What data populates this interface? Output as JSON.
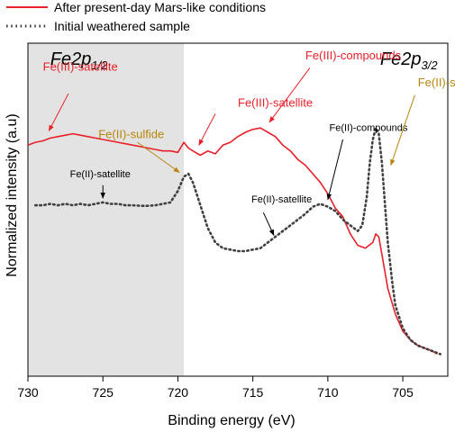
{
  "chart_data": {
    "type": "line",
    "xlabel": "Binding energy (eV)",
    "ylabel": "Normalized intensity (a.u)",
    "xlim": [
      730,
      702
    ],
    "x_reversed": true,
    "ylim": [
      0,
      1
    ],
    "y_ticks_shown": false,
    "xticks": [
      730,
      725,
      720,
      715,
      710,
      705
    ],
    "grid": false,
    "legend_position": "top-left, outside plot",
    "shaded_region": {
      "x_from": 730,
      "x_to": 719.6,
      "color": "#e3e3e3"
    },
    "region_labels": [
      {
        "main": "Fe2p",
        "sub": "1/2",
        "x": 726.6
      },
      {
        "main": "Fe2p",
        "sub": "3/2",
        "x": 704.6
      }
    ],
    "series": [
      {
        "name": "After present-day Mars-like conditions",
        "color": "#e8202a",
        "style": "solid",
        "points": [
          [
            730.0,
            0.76
          ],
          [
            729.5,
            0.77
          ],
          [
            729.0,
            0.775
          ],
          [
            728.5,
            0.785
          ],
          [
            728.0,
            0.79
          ],
          [
            727.5,
            0.795
          ],
          [
            727.0,
            0.8
          ],
          [
            726.5,
            0.795
          ],
          [
            726.0,
            0.79
          ],
          [
            725.5,
            0.785
          ],
          [
            725.0,
            0.78
          ],
          [
            724.5,
            0.775
          ],
          [
            724.0,
            0.77
          ],
          [
            723.5,
            0.765
          ],
          [
            723.0,
            0.76
          ],
          [
            722.5,
            0.755
          ],
          [
            722.0,
            0.75
          ],
          [
            721.5,
            0.745
          ],
          [
            721.0,
            0.74
          ],
          [
            720.5,
            0.74
          ],
          [
            720.0,
            0.735
          ],
          [
            719.6,
            0.77
          ],
          [
            719.3,
            0.75
          ],
          [
            719.0,
            0.74
          ],
          [
            718.5,
            0.725
          ],
          [
            718.0,
            0.74
          ],
          [
            717.5,
            0.73
          ],
          [
            717.0,
            0.76
          ],
          [
            716.5,
            0.77
          ],
          [
            716.0,
            0.79
          ],
          [
            715.5,
            0.805
          ],
          [
            715.0,
            0.815
          ],
          [
            714.5,
            0.82
          ],
          [
            714.0,
            0.805
          ],
          [
            713.5,
            0.79
          ],
          [
            713.0,
            0.76
          ],
          [
            712.5,
            0.74
          ],
          [
            712.0,
            0.71
          ],
          [
            711.5,
            0.69
          ],
          [
            711.0,
            0.66
          ],
          [
            710.5,
            0.63
          ],
          [
            710.0,
            0.59
          ],
          [
            709.5,
            0.54
          ],
          [
            709.0,
            0.51
          ],
          [
            708.5,
            0.45
          ],
          [
            708.0,
            0.41
          ],
          [
            707.5,
            0.4
          ],
          [
            707.0,
            0.42
          ],
          [
            706.8,
            0.45
          ],
          [
            706.6,
            0.44
          ],
          [
            706.4,
            0.38
          ],
          [
            706.2,
            0.32
          ],
          [
            706.0,
            0.26
          ],
          [
            705.5,
            0.17
          ],
          [
            705.0,
            0.11
          ],
          [
            704.5,
            0.08
          ],
          [
            704.0,
            0.06
          ],
          [
            703.5,
            0.05
          ],
          [
            703.0,
            0.04
          ],
          [
            702.7,
            0.03
          ]
        ]
      },
      {
        "name": "Initial weathered sample",
        "color": "#404040",
        "style": "dotted",
        "points": [
          [
            729.5,
            0.55
          ],
          [
            729.0,
            0.55
          ],
          [
            728.5,
            0.555
          ],
          [
            728.0,
            0.55
          ],
          [
            727.5,
            0.555
          ],
          [
            727.0,
            0.55
          ],
          [
            726.5,
            0.555
          ],
          [
            726.0,
            0.55
          ],
          [
            725.5,
            0.555
          ],
          [
            725.0,
            0.56
          ],
          [
            724.5,
            0.555
          ],
          [
            724.0,
            0.555
          ],
          [
            723.5,
            0.55
          ],
          [
            723.0,
            0.55
          ],
          [
            722.5,
            0.548
          ],
          [
            722.0,
            0.548
          ],
          [
            721.5,
            0.55
          ],
          [
            721.0,
            0.555
          ],
          [
            720.5,
            0.56
          ],
          [
            720.0,
            0.6
          ],
          [
            719.6,
            0.65
          ],
          [
            719.3,
            0.66
          ],
          [
            719.0,
            0.63
          ],
          [
            718.5,
            0.55
          ],
          [
            718.0,
            0.47
          ],
          [
            717.5,
            0.42
          ],
          [
            717.0,
            0.4
          ],
          [
            716.5,
            0.395
          ],
          [
            716.0,
            0.39
          ],
          [
            715.5,
            0.39
          ],
          [
            715.0,
            0.395
          ],
          [
            714.5,
            0.4
          ],
          [
            714.0,
            0.42
          ],
          [
            713.5,
            0.44
          ],
          [
            713.0,
            0.46
          ],
          [
            712.5,
            0.48
          ],
          [
            712.0,
            0.5
          ],
          [
            711.5,
            0.52
          ],
          [
            711.0,
            0.545
          ],
          [
            710.5,
            0.555
          ],
          [
            710.0,
            0.545
          ],
          [
            709.5,
            0.53
          ],
          [
            709.0,
            0.5
          ],
          [
            708.5,
            0.48
          ],
          [
            708.0,
            0.46
          ],
          [
            707.7,
            0.48
          ],
          [
            707.4,
            0.58
          ],
          [
            707.2,
            0.7
          ],
          [
            707.0,
            0.78
          ],
          [
            706.8,
            0.82
          ],
          [
            706.6,
            0.8
          ],
          [
            706.4,
            0.7
          ],
          [
            706.2,
            0.56
          ],
          [
            706.0,
            0.42
          ],
          [
            705.7,
            0.28
          ],
          [
            705.5,
            0.2
          ],
          [
            705.0,
            0.12
          ],
          [
            704.5,
            0.08
          ],
          [
            704.0,
            0.06
          ],
          [
            703.5,
            0.05
          ],
          [
            703.0,
            0.04
          ],
          [
            702.5,
            0.03
          ]
        ]
      }
    ],
    "annotations": [
      {
        "text": "Fe(III)-satellite",
        "color": "#e8202a",
        "size": 13,
        "tx": 729.0,
        "ty": 1.02,
        "ax": 727.3,
        "ay": 0.94,
        "hx": 728.6,
        "hy": 0.81
      },
      {
        "text": "Fe(II)-sulfide",
        "color": "#b8860b",
        "size": 13,
        "tx": 725.3,
        "ty": 0.785,
        "ax": 722.7,
        "ay": 0.77,
        "hx": 719.9,
        "hy": 0.665
      },
      {
        "text": "Fe(II)-satellite",
        "color": "#000000",
        "size": 11,
        "tx": 727.2,
        "ty": 0.648,
        "ax": 725.0,
        "ay": 0.62,
        "hx": 725.0,
        "hy": 0.575
      },
      {
        "text": "Fe(III)-satellite",
        "color": "#e8202a",
        "size": 13,
        "tx": 716.0,
        "ty": 0.895,
        "ax": 717.5,
        "ay": 0.87,
        "hx": 718.6,
        "hy": 0.76
      },
      {
        "text": "Fe(III)-compounds",
        "color": "#e8202a",
        "size": 13,
        "tx": 711.5,
        "ty": 1.06,
        "ax": 711.2,
        "ay": 1.03,
        "hx": 713.9,
        "hy": 0.84
      },
      {
        "text": "Fe(II)-compounds",
        "color": "#000000",
        "size": 11,
        "tx": 709.9,
        "ty": 0.81,
        "ax": 709.0,
        "ay": 0.78,
        "hx": 710.0,
        "hy": 0.57
      },
      {
        "text": "Fe(II)-satellite",
        "color": "#000000",
        "size": 11,
        "tx": 715.1,
        "ty": 0.56,
        "ax": 714.3,
        "ay": 0.525,
        "hx": 713.6,
        "hy": 0.445
      },
      {
        "text": "Fe(II)-sulfide",
        "color": "#b8860b",
        "size": 13,
        "tx": 704.0,
        "ty": 0.965,
        "ax": 704.2,
        "ay": 0.935,
        "hx": 705.8,
        "hy": 0.69
      }
    ]
  }
}
